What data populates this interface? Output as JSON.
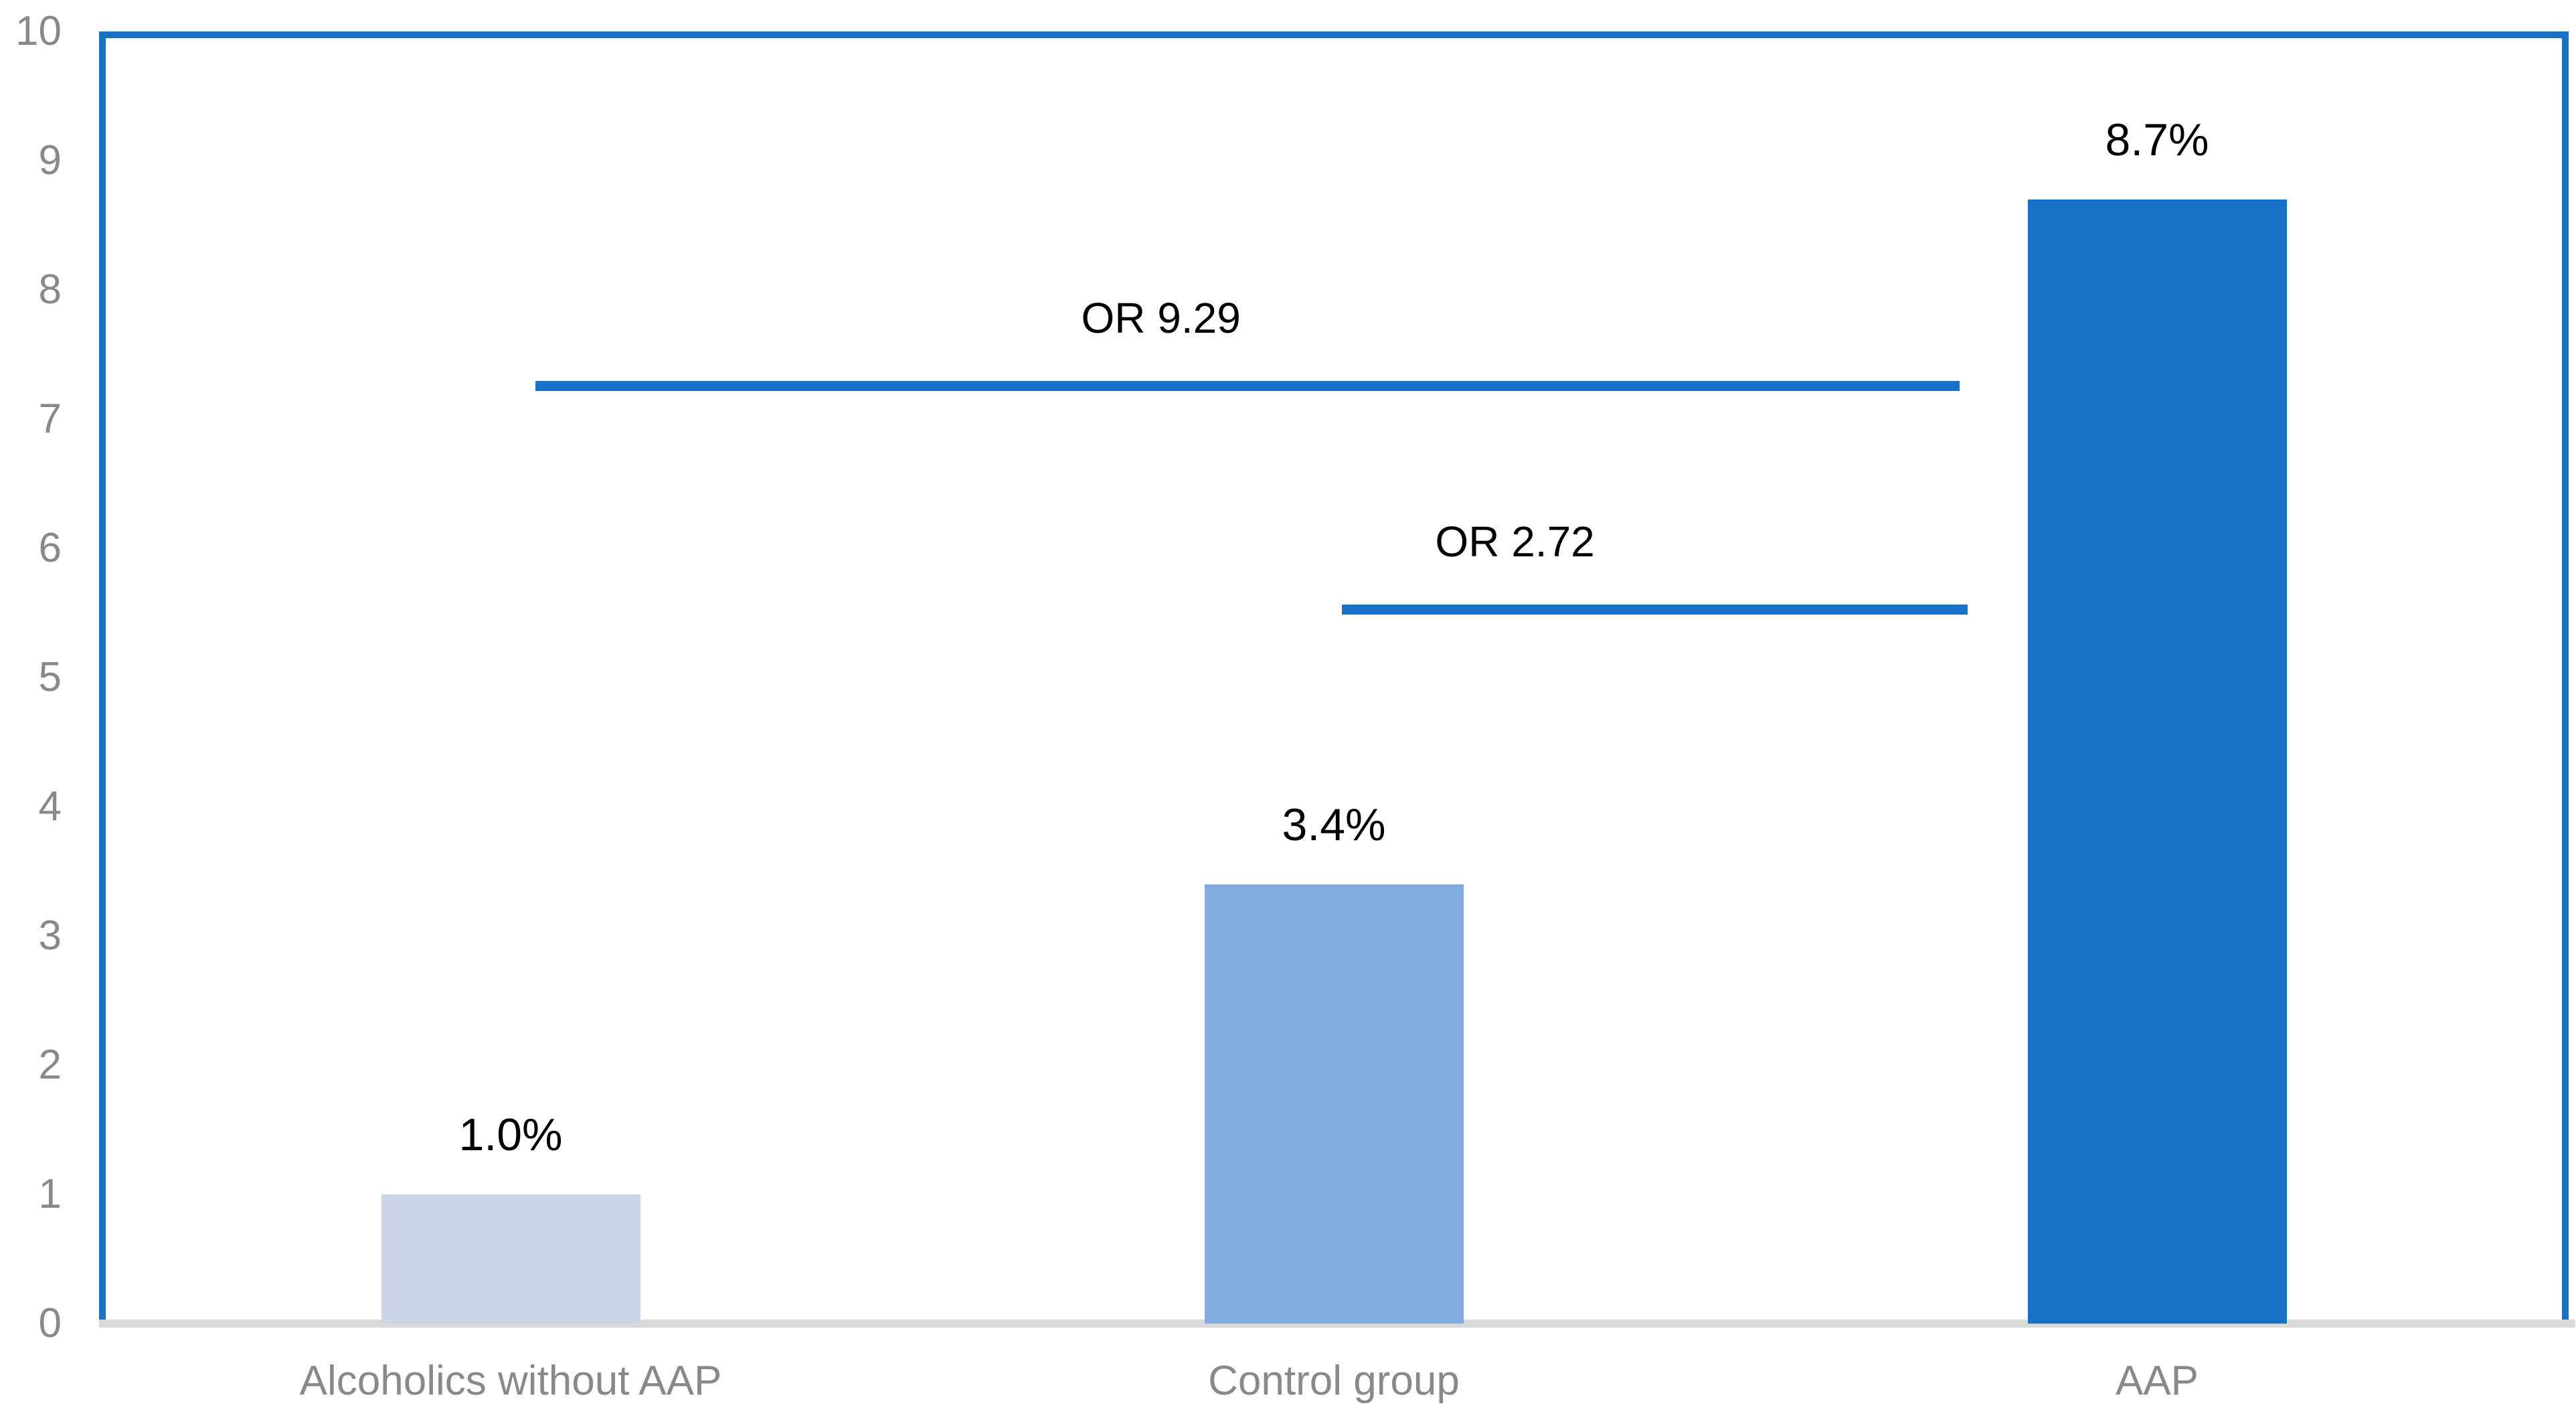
{
  "chart_data": {
    "type": "bar",
    "title": "",
    "categories": [
      "Alcoholics without AAP",
      "Control group",
      "AAP"
    ],
    "values": [
      1.0,
      3.4,
      8.7
    ],
    "value_labels": [
      "1.0%",
      "3.4%",
      "8.7%"
    ],
    "bar_colors": [
      "#CDD6E8",
      "#82ACDF",
      "#1772C8"
    ],
    "xlabel": "",
    "ylabel": "",
    "ylim": [
      0,
      10
    ],
    "ytick_values": [
      0,
      1,
      2,
      3,
      4,
      5,
      6,
      7,
      8,
      9,
      10
    ],
    "ytick_labels": [
      "0",
      "1",
      "2",
      "3",
      "4",
      "5",
      "6",
      "7",
      "8",
      "9",
      "10"
    ],
    "grid": false,
    "legend": false,
    "annotations": [
      {
        "label": "OR 9.29",
        "y": 7.26,
        "x_start": 0.53,
        "x_end": 2.26,
        "label_x": 1.29
      },
      {
        "label": "OR 2.72",
        "y": 5.53,
        "x_start": 1.51,
        "x_end": 2.27,
        "label_x": 1.72
      }
    ],
    "colors": {
      "accent_blue": "#1772C8",
      "plot_border_blue": "#1772C8",
      "axis_line_gray": "#D9D9D9",
      "axis_label_gray": "#898989",
      "data_label_black": "#000000"
    }
  }
}
